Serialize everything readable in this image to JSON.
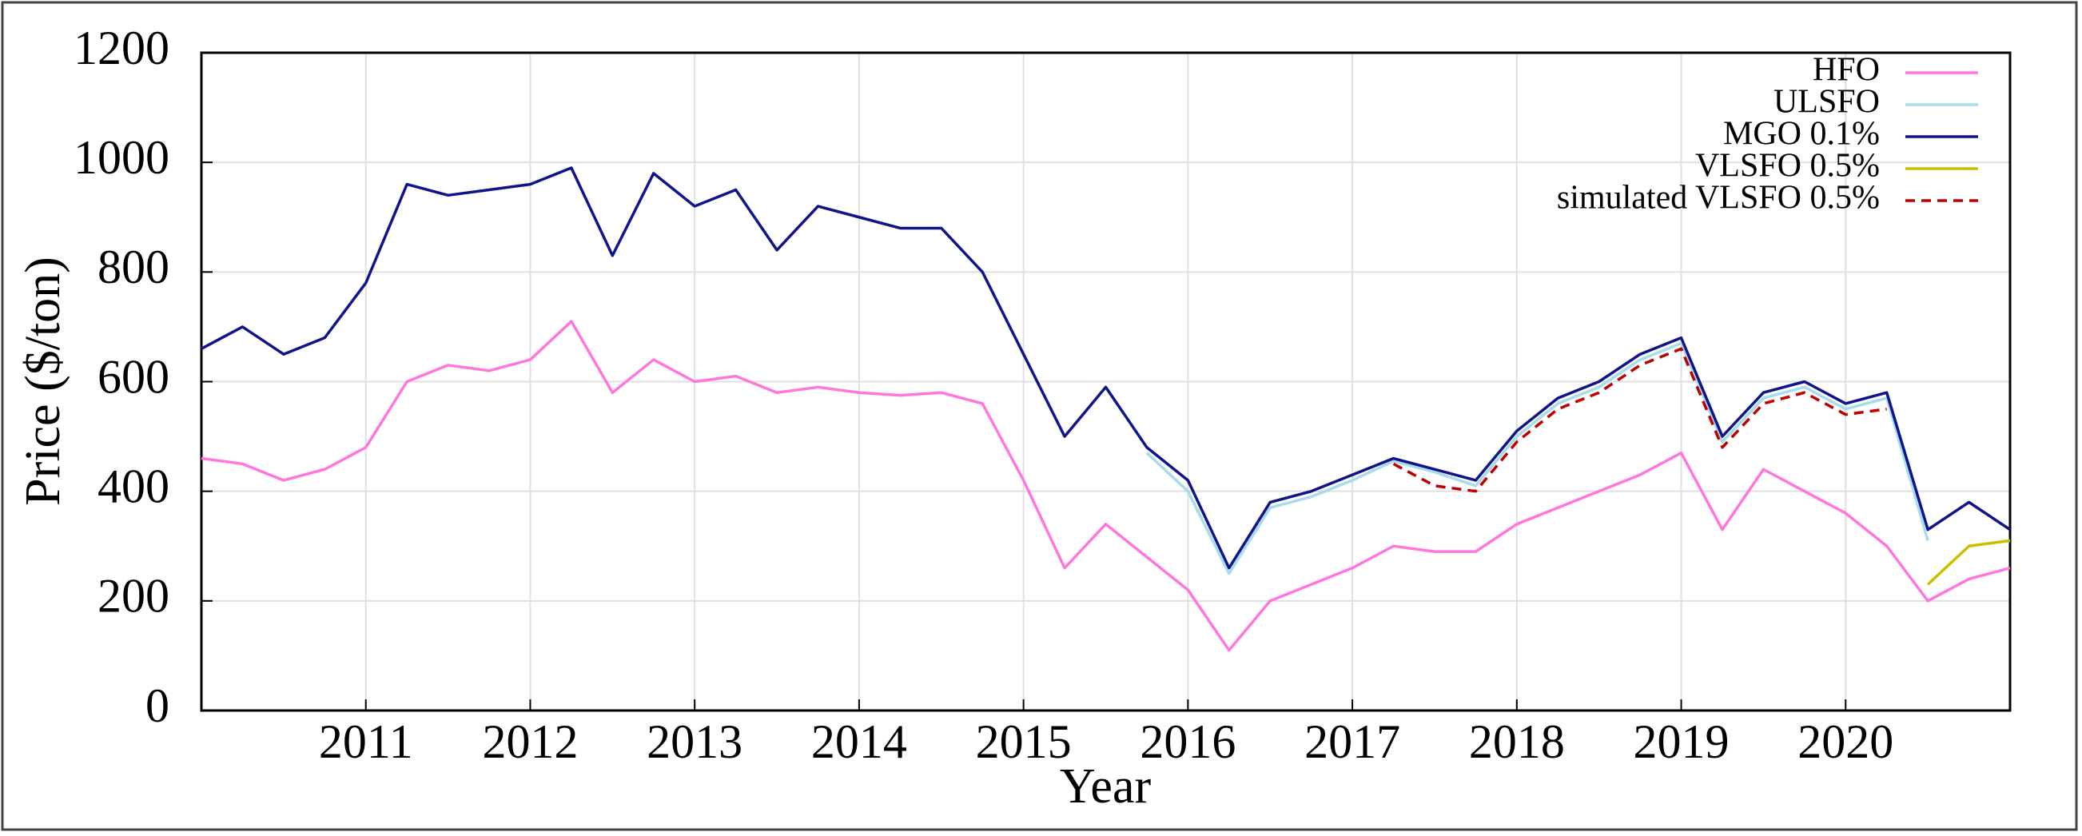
{
  "chart_data": {
    "type": "line",
    "x_label": "Year",
    "y_label": "Price ($/ton)",
    "x": [
      2010.0,
      2010.25,
      2010.5,
      2010.75,
      2011.0,
      2011.25,
      2011.5,
      2011.75,
      2012.0,
      2012.25,
      2012.5,
      2012.75,
      2013.0,
      2013.25,
      2013.5,
      2013.75,
      2014.0,
      2014.25,
      2014.5,
      2014.75,
      2015.0,
      2015.25,
      2015.5,
      2015.75,
      2016.0,
      2016.25,
      2016.5,
      2016.75,
      2017.0,
      2017.25,
      2017.5,
      2017.75,
      2018.0,
      2018.25,
      2018.5,
      2018.75,
      2019.0,
      2019.25,
      2019.5,
      2019.75,
      2020.0,
      2020.25,
      2020.5,
      2020.75,
      2021.0
    ],
    "series": [
      {
        "name": "HFO",
        "color": "#ff77dd",
        "values": [
          460,
          450,
          420,
          440,
          480,
          600,
          630,
          620,
          640,
          710,
          580,
          640,
          600,
          610,
          580,
          590,
          580,
          575,
          580,
          560,
          420,
          260,
          340,
          280,
          220,
          110,
          200,
          230,
          260,
          300,
          290,
          290,
          340,
          370,
          400,
          430,
          470,
          330,
          440,
          400,
          360,
          300,
          200,
          240,
          260
        ]
      },
      {
        "name": "ULSFO",
        "color": "#a8dcec",
        "values": [
          null,
          null,
          null,
          null,
          null,
          null,
          null,
          null,
          null,
          null,
          null,
          null,
          null,
          null,
          null,
          null,
          null,
          null,
          null,
          null,
          null,
          null,
          null,
          470,
          400,
          250,
          370,
          390,
          420,
          455,
          435,
          410,
          500,
          560,
          590,
          640,
          670,
          490,
          570,
          590,
          550,
          570,
          310,
          null,
          null
        ]
      },
      {
        "name": "MGO 0.1%",
        "color": "#10148a",
        "values": [
          660,
          700,
          650,
          680,
          780,
          960,
          940,
          950,
          960,
          990,
          830,
          980,
          920,
          950,
          840,
          920,
          900,
          880,
          880,
          800,
          650,
          500,
          590,
          480,
          420,
          260,
          380,
          400,
          430,
          460,
          440,
          420,
          510,
          570,
          600,
          650,
          680,
          500,
          580,
          600,
          560,
          580,
          330,
          380,
          330
        ]
      },
      {
        "name": "VLSFO 0.5%",
        "color": "#c8c000",
        "values": [
          null,
          null,
          null,
          null,
          null,
          null,
          null,
          null,
          null,
          null,
          null,
          null,
          null,
          null,
          null,
          null,
          null,
          null,
          null,
          null,
          null,
          null,
          null,
          null,
          null,
          null,
          null,
          null,
          null,
          null,
          null,
          null,
          null,
          null,
          null,
          null,
          null,
          null,
          null,
          null,
          null,
          null,
          230,
          300,
          310
        ]
      },
      {
        "name": "simulated VLSFO 0.5%",
        "color": "#c00000",
        "dashed": true,
        "values": [
          null,
          null,
          null,
          null,
          null,
          null,
          null,
          null,
          null,
          null,
          null,
          null,
          null,
          null,
          null,
          null,
          null,
          null,
          null,
          null,
          null,
          null,
          null,
          null,
          null,
          null,
          null,
          null,
          null,
          450,
          410,
          400,
          490,
          550,
          580,
          630,
          660,
          480,
          560,
          580,
          540,
          550,
          null,
          null,
          null
        ]
      }
    ],
    "xlim": [
      2010,
      2021
    ],
    "xticks": [
      2011,
      2012,
      2013,
      2014,
      2015,
      2016,
      2017,
      2018,
      2019,
      2020
    ],
    "ylim": [
      0,
      1200
    ],
    "yticks": [
      0,
      200,
      400,
      600,
      800,
      1000,
      1200
    ],
    "grid": true,
    "legend": "top right"
  }
}
